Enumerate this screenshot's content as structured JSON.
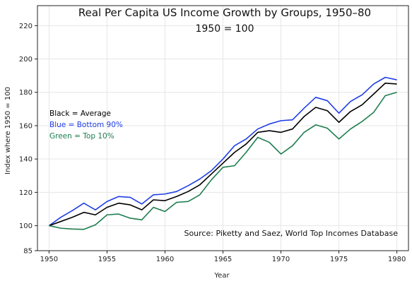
{
  "chart_data": {
    "type": "line",
    "title": "Real Per Capita US Income Growth by Groups, 1950–80",
    "subtitle": "1950 = 100",
    "xlabel": "Year",
    "ylabel": "Index where 1950 = 100",
    "xlim": [
      1949,
      1981
    ],
    "ylim": [
      85,
      232
    ],
    "x_ticks": [
      1950,
      1955,
      1960,
      1965,
      1970,
      1975,
      1980
    ],
    "y_ticks": [
      85,
      100,
      120,
      140,
      160,
      180,
      200,
      220
    ],
    "grid": true,
    "legend_placement": "left",
    "legend_lines": [
      {
        "text": "Black = Average",
        "color": "#000000"
      },
      {
        "text": "Blue = Bottom 90%",
        "color": "#1f3ee6"
      },
      {
        "text": "Green = Top 10%",
        "color": "#1e7d4e"
      }
    ],
    "source": "Source:  Piketty and Saez, World Top Incomes Database",
    "x": [
      1950,
      1951,
      1952,
      1953,
      1954,
      1955,
      1956,
      1957,
      1958,
      1959,
      1960,
      1961,
      1962,
      1963,
      1964,
      1965,
      1966,
      1967,
      1968,
      1969,
      1970,
      1971,
      1972,
      1973,
      1974,
      1975,
      1976,
      1977,
      1978,
      1979,
      1980
    ],
    "series": [
      {
        "color": "#1f3ee6",
        "values": [
          100,
          105,
          109,
          113.5,
          109.5,
          114.5,
          117.5,
          117,
          113,
          118.5,
          119,
          120.5,
          124,
          128,
          133,
          140,
          148,
          152,
          158,
          161,
          163,
          163.5,
          170.5,
          177,
          175,
          167.5,
          174.5,
          178.5,
          185,
          189,
          187.5
        ]
      },
      {
        "color": "#000000",
        "values": [
          100,
          102.5,
          105,
          108,
          106.5,
          111,
          113.5,
          112.5,
          109.5,
          115.5,
          115,
          117.5,
          120.5,
          124.5,
          131,
          137.5,
          144,
          149,
          156,
          157,
          156,
          158,
          165.5,
          171,
          169,
          162,
          168.5,
          172.5,
          179,
          185.5,
          185
        ]
      },
      {
        "color": "#1e7d4e",
        "values": [
          100,
          98.5,
          98,
          97.8,
          100.5,
          106.5,
          107,
          104.5,
          103.5,
          111,
          108.5,
          114,
          114.5,
          118.5,
          127.5,
          135,
          136,
          144,
          153,
          150,
          143,
          148,
          156,
          160.5,
          158.5,
          152,
          158,
          162.5,
          168,
          178,
          180
        ]
      }
    ]
  }
}
